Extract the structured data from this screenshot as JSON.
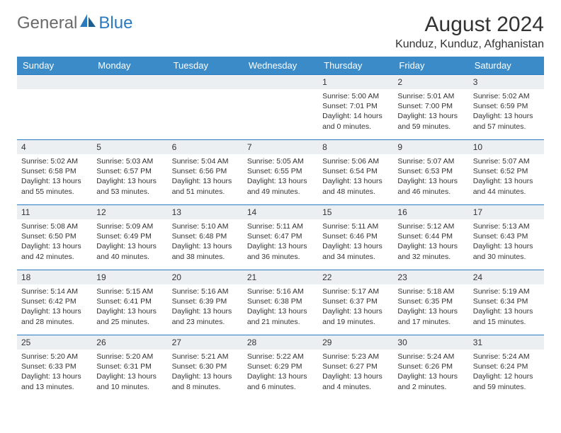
{
  "logo": {
    "text1": "General",
    "text2": "Blue"
  },
  "title": "August 2024",
  "location": "Kunduz, Kunduz, Afghanistan",
  "colors": {
    "header_bg": "#3b8bc9",
    "header_text": "#ffffff",
    "daynum_bg": "#eceff1",
    "border": "#2a7ac0",
    "logo_gray": "#6a6a6a",
    "logo_blue": "#2a7ac0"
  },
  "weekdays": [
    "Sunday",
    "Monday",
    "Tuesday",
    "Wednesday",
    "Thursday",
    "Friday",
    "Saturday"
  ],
  "weeks": [
    [
      null,
      null,
      null,
      null,
      {
        "n": "1",
        "sr": "5:00 AM",
        "ss": "7:01 PM",
        "dl": "Daylight: 14 hours and 0 minutes."
      },
      {
        "n": "2",
        "sr": "5:01 AM",
        "ss": "7:00 PM",
        "dl": "Daylight: 13 hours and 59 minutes."
      },
      {
        "n": "3",
        "sr": "5:02 AM",
        "ss": "6:59 PM",
        "dl": "Daylight: 13 hours and 57 minutes."
      }
    ],
    [
      {
        "n": "4",
        "sr": "5:02 AM",
        "ss": "6:58 PM",
        "dl": "Daylight: 13 hours and 55 minutes."
      },
      {
        "n": "5",
        "sr": "5:03 AM",
        "ss": "6:57 PM",
        "dl": "Daylight: 13 hours and 53 minutes."
      },
      {
        "n": "6",
        "sr": "5:04 AM",
        "ss": "6:56 PM",
        "dl": "Daylight: 13 hours and 51 minutes."
      },
      {
        "n": "7",
        "sr": "5:05 AM",
        "ss": "6:55 PM",
        "dl": "Daylight: 13 hours and 49 minutes."
      },
      {
        "n": "8",
        "sr": "5:06 AM",
        "ss": "6:54 PM",
        "dl": "Daylight: 13 hours and 48 minutes."
      },
      {
        "n": "9",
        "sr": "5:07 AM",
        "ss": "6:53 PM",
        "dl": "Daylight: 13 hours and 46 minutes."
      },
      {
        "n": "10",
        "sr": "5:07 AM",
        "ss": "6:52 PM",
        "dl": "Daylight: 13 hours and 44 minutes."
      }
    ],
    [
      {
        "n": "11",
        "sr": "5:08 AM",
        "ss": "6:50 PM",
        "dl": "Daylight: 13 hours and 42 minutes."
      },
      {
        "n": "12",
        "sr": "5:09 AM",
        "ss": "6:49 PM",
        "dl": "Daylight: 13 hours and 40 minutes."
      },
      {
        "n": "13",
        "sr": "5:10 AM",
        "ss": "6:48 PM",
        "dl": "Daylight: 13 hours and 38 minutes."
      },
      {
        "n": "14",
        "sr": "5:11 AM",
        "ss": "6:47 PM",
        "dl": "Daylight: 13 hours and 36 minutes."
      },
      {
        "n": "15",
        "sr": "5:11 AM",
        "ss": "6:46 PM",
        "dl": "Daylight: 13 hours and 34 minutes."
      },
      {
        "n": "16",
        "sr": "5:12 AM",
        "ss": "6:44 PM",
        "dl": "Daylight: 13 hours and 32 minutes."
      },
      {
        "n": "17",
        "sr": "5:13 AM",
        "ss": "6:43 PM",
        "dl": "Daylight: 13 hours and 30 minutes."
      }
    ],
    [
      {
        "n": "18",
        "sr": "5:14 AM",
        "ss": "6:42 PM",
        "dl": "Daylight: 13 hours and 28 minutes."
      },
      {
        "n": "19",
        "sr": "5:15 AM",
        "ss": "6:41 PM",
        "dl": "Daylight: 13 hours and 25 minutes."
      },
      {
        "n": "20",
        "sr": "5:16 AM",
        "ss": "6:39 PM",
        "dl": "Daylight: 13 hours and 23 minutes."
      },
      {
        "n": "21",
        "sr": "5:16 AM",
        "ss": "6:38 PM",
        "dl": "Daylight: 13 hours and 21 minutes."
      },
      {
        "n": "22",
        "sr": "5:17 AM",
        "ss": "6:37 PM",
        "dl": "Daylight: 13 hours and 19 minutes."
      },
      {
        "n": "23",
        "sr": "5:18 AM",
        "ss": "6:35 PM",
        "dl": "Daylight: 13 hours and 17 minutes."
      },
      {
        "n": "24",
        "sr": "5:19 AM",
        "ss": "6:34 PM",
        "dl": "Daylight: 13 hours and 15 minutes."
      }
    ],
    [
      {
        "n": "25",
        "sr": "5:20 AM",
        "ss": "6:33 PM",
        "dl": "Daylight: 13 hours and 13 minutes."
      },
      {
        "n": "26",
        "sr": "5:20 AM",
        "ss": "6:31 PM",
        "dl": "Daylight: 13 hours and 10 minutes."
      },
      {
        "n": "27",
        "sr": "5:21 AM",
        "ss": "6:30 PM",
        "dl": "Daylight: 13 hours and 8 minutes."
      },
      {
        "n": "28",
        "sr": "5:22 AM",
        "ss": "6:29 PM",
        "dl": "Daylight: 13 hours and 6 minutes."
      },
      {
        "n": "29",
        "sr": "5:23 AM",
        "ss": "6:27 PM",
        "dl": "Daylight: 13 hours and 4 minutes."
      },
      {
        "n": "30",
        "sr": "5:24 AM",
        "ss": "6:26 PM",
        "dl": "Daylight: 13 hours and 2 minutes."
      },
      {
        "n": "31",
        "sr": "5:24 AM",
        "ss": "6:24 PM",
        "dl": "Daylight: 12 hours and 59 minutes."
      }
    ]
  ],
  "labels": {
    "sunrise": "Sunrise:",
    "sunset": "Sunset:"
  }
}
